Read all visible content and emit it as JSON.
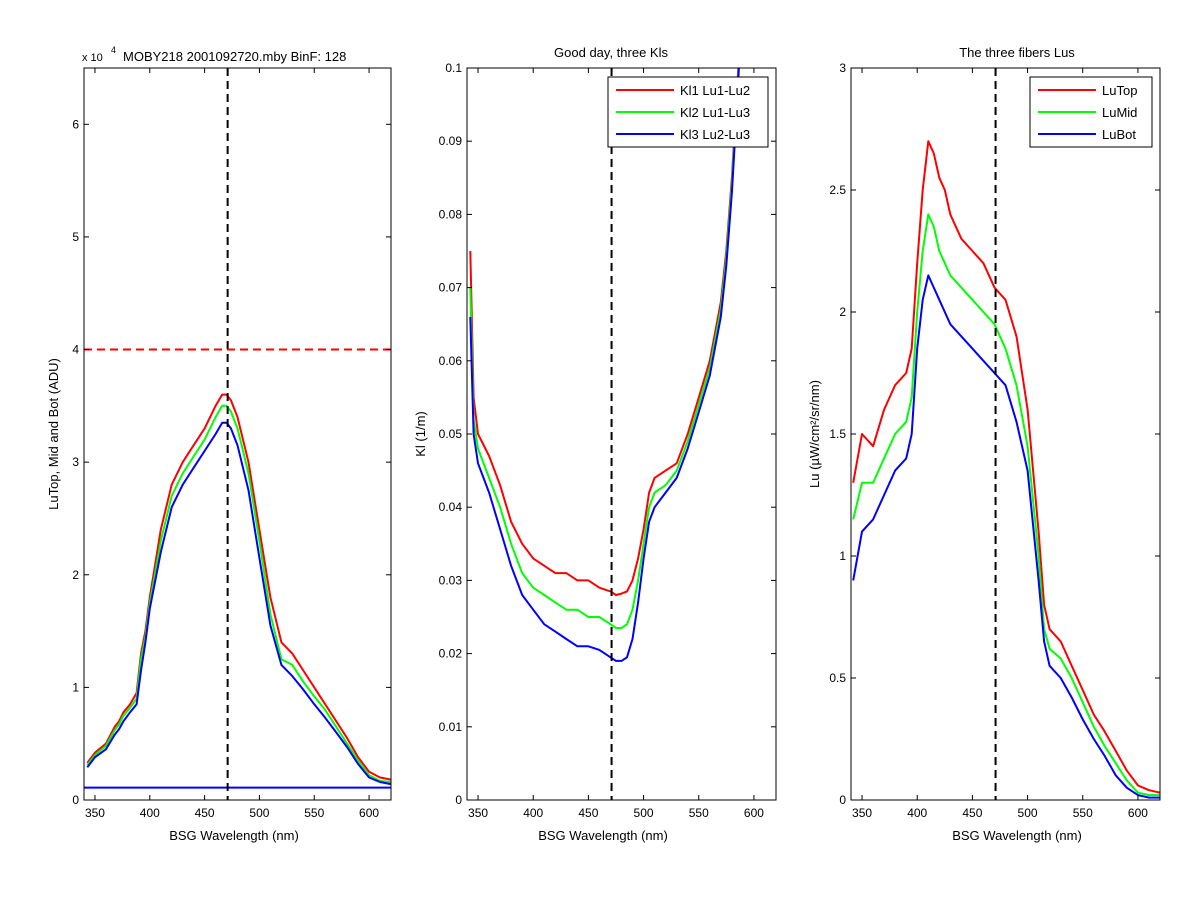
{
  "figure": {
    "background": "#ffffff"
  },
  "chart_data": [
    {
      "type": "line",
      "title": "MOBY218  2001092720.mby BinF: 128",
      "scale_note": "x 10",
      "scale_exp": "4",
      "xlabel": "BSG Wavelength (nm)",
      "ylabel": "LuTop, Mid and Bot (ADU)",
      "xlim": [
        340,
        620
      ],
      "ylim": [
        0,
        65000
      ],
      "xticks": [
        350,
        400,
        450,
        500,
        550,
        600
      ],
      "xtick_labels": [
        "350",
        "400",
        "450",
        "500",
        "550",
        "600"
      ],
      "yticks": [
        0,
        10000,
        20000,
        30000,
        40000,
        50000,
        60000
      ],
      "ytick_labels": [
        "0",
        "1",
        "2",
        "3",
        "4",
        "5",
        "6"
      ],
      "grid": false,
      "legend": null,
      "reference_lines": [
        {
          "orientation": "vertical",
          "value": 471,
          "color": "#000000",
          "style": "dashed"
        },
        {
          "orientation": "horizontal",
          "value": 40000,
          "color": "#ff0000",
          "style": "dashed"
        }
      ],
      "series": [
        {
          "color": "#ff0000",
          "x": [
            343,
            350,
            360,
            368,
            372,
            376,
            382,
            388,
            392,
            396,
            400,
            410,
            420,
            430,
            440,
            450,
            460,
            466,
            470,
            474,
            480,
            490,
            500,
            510,
            520,
            530,
            540,
            550,
            560,
            570,
            580,
            590,
            600,
            610,
            620
          ],
          "values": [
            3300,
            4200,
            5000,
            6500,
            7000,
            7800,
            8500,
            9500,
            13000,
            15000,
            18000,
            24000,
            28000,
            30000,
            31500,
            33000,
            35000,
            36000,
            36000,
            35500,
            34000,
            30000,
            24000,
            18000,
            14000,
            13000,
            11500,
            10000,
            8500,
            7000,
            5500,
            3800,
            2500,
            2000,
            1800
          ]
        },
        {
          "color": "#00ff00",
          "x": [
            343,
            350,
            360,
            368,
            372,
            376,
            382,
            388,
            392,
            396,
            400,
            410,
            420,
            430,
            440,
            450,
            460,
            466,
            470,
            474,
            480,
            490,
            500,
            510,
            520,
            530,
            540,
            550,
            560,
            570,
            580,
            590,
            600,
            610,
            620
          ],
          "values": [
            3100,
            4000,
            4800,
            6200,
            6700,
            7500,
            8200,
            9000,
            12500,
            14500,
            17500,
            23000,
            27000,
            29000,
            30500,
            32000,
            34000,
            35000,
            35000,
            34500,
            33000,
            29000,
            23000,
            16500,
            12500,
            12000,
            10500,
            9200,
            8000,
            6500,
            5000,
            3500,
            2200,
            1700,
            1600
          ]
        },
        {
          "color": "#0000ff",
          "x": [
            343,
            350,
            360,
            368,
            372,
            376,
            382,
            388,
            392,
            396,
            400,
            410,
            420,
            430,
            440,
            450,
            460,
            466,
            470,
            474,
            480,
            490,
            500,
            510,
            520,
            530,
            540,
            550,
            560,
            570,
            580,
            590,
            600,
            610,
            620
          ],
          "values": [
            2900,
            3800,
            4500,
            5800,
            6300,
            7000,
            7800,
            8500,
            11500,
            14000,
            17000,
            22000,
            26000,
            28000,
            29500,
            31000,
            32500,
            33500,
            33500,
            33000,
            31500,
            27500,
            21500,
            15500,
            12000,
            11000,
            9800,
            8500,
            7300,
            6000,
            4700,
            3200,
            2000,
            1600,
            1400
          ]
        },
        {
          "color": "#0000ff",
          "x": [
            340,
            620
          ],
          "values": [
            1100,
            1100
          ]
        }
      ]
    },
    {
      "type": "line",
      "title": "Good day, three Kls",
      "xlabel": "BSG Wavelength (nm)",
      "ylabel": "Kl (1/m)",
      "xlim": [
        340,
        620
      ],
      "ylim": [
        0,
        0.1
      ],
      "xticks": [
        350,
        400,
        450,
        500,
        550,
        600
      ],
      "xtick_labels": [
        "350",
        "400",
        "450",
        "500",
        "550",
        "600"
      ],
      "yticks": [
        0,
        0.01,
        0.02,
        0.03,
        0.04,
        0.05,
        0.06,
        0.07,
        0.08,
        0.09,
        0.1
      ],
      "ytick_labels": [
        "0",
        "0.01",
        "0.02",
        "0.03",
        "0.04",
        "0.05",
        "0.06",
        "0.07",
        "0.08",
        "0.09",
        "0.1"
      ],
      "grid": false,
      "legend": "top-right",
      "reference_lines": [
        {
          "orientation": "vertical",
          "value": 471,
          "color": "#000000",
          "style": "dashed"
        }
      ],
      "series": [
        {
          "name": "Kl1 Lu1-Lu2",
          "color": "#ff0000",
          "x": [
            343,
            346,
            350,
            360,
            370,
            380,
            390,
            400,
            410,
            420,
            430,
            440,
            450,
            460,
            470,
            475,
            480,
            485,
            490,
            495,
            500,
            505,
            510,
            520,
            530,
            540,
            550,
            560,
            570,
            575,
            580,
            585,
            588
          ],
          "values": [
            0.075,
            0.055,
            0.05,
            0.047,
            0.043,
            0.038,
            0.035,
            0.033,
            0.032,
            0.031,
            0.031,
            0.03,
            0.03,
            0.029,
            0.0285,
            0.028,
            0.0282,
            0.0285,
            0.03,
            0.033,
            0.037,
            0.042,
            0.044,
            0.045,
            0.046,
            0.05,
            0.055,
            0.06,
            0.068,
            0.075,
            0.085,
            0.098,
            0.105
          ]
        },
        {
          "name": "Kl2 Lu1-Lu3",
          "color": "#00ff00",
          "x": [
            343,
            346,
            350,
            360,
            370,
            380,
            390,
            400,
            410,
            420,
            430,
            440,
            450,
            460,
            470,
            475,
            480,
            485,
            490,
            495,
            500,
            505,
            510,
            520,
            530,
            540,
            550,
            560,
            570,
            575,
            580,
            585,
            588
          ],
          "values": [
            0.07,
            0.052,
            0.048,
            0.044,
            0.04,
            0.035,
            0.031,
            0.029,
            0.028,
            0.027,
            0.026,
            0.026,
            0.025,
            0.025,
            0.024,
            0.0235,
            0.0235,
            0.024,
            0.026,
            0.03,
            0.035,
            0.04,
            0.042,
            0.043,
            0.045,
            0.049,
            0.054,
            0.059,
            0.067,
            0.074,
            0.084,
            0.097,
            0.105
          ]
        },
        {
          "name": "Kl3 Lu2-Lu3",
          "color": "#0000ff",
          "x": [
            343,
            346,
            350,
            360,
            370,
            380,
            390,
            400,
            410,
            420,
            430,
            440,
            450,
            460,
            470,
            475,
            480,
            485,
            490,
            495,
            500,
            505,
            510,
            520,
            530,
            540,
            550,
            560,
            570,
            575,
            580,
            585,
            588
          ],
          "values": [
            0.066,
            0.05,
            0.046,
            0.042,
            0.037,
            0.032,
            0.028,
            0.026,
            0.024,
            0.023,
            0.022,
            0.021,
            0.021,
            0.0205,
            0.0195,
            0.019,
            0.019,
            0.0195,
            0.022,
            0.027,
            0.033,
            0.038,
            0.04,
            0.042,
            0.044,
            0.048,
            0.053,
            0.058,
            0.066,
            0.073,
            0.083,
            0.096,
            0.105
          ]
        }
      ]
    },
    {
      "type": "line",
      "title": "The three fibers Lus",
      "xlabel": "BSG Wavelength (nm)",
      "ylabel": "Lu (µW/cm²/sr/nm)",
      "xlim": [
        340,
        620
      ],
      "ylim": [
        0,
        3
      ],
      "xticks": [
        350,
        400,
        450,
        500,
        550,
        600
      ],
      "xtick_labels": [
        "350",
        "400",
        "450",
        "500",
        "550",
        "600"
      ],
      "yticks": [
        0,
        0.5,
        1,
        1.5,
        2,
        2.5,
        3
      ],
      "ytick_labels": [
        "0",
        "0.5",
        "1",
        "1.5",
        "2",
        "2.5",
        "3"
      ],
      "grid": false,
      "legend": "top-right",
      "reference_lines": [
        {
          "orientation": "vertical",
          "value": 471,
          "color": "#000000",
          "style": "dashed"
        }
      ],
      "series": [
        {
          "name": "LuTop",
          "color": "#ff0000",
          "x": [
            342,
            350,
            360,
            370,
            380,
            390,
            395,
            400,
            405,
            410,
            415,
            420,
            425,
            430,
            440,
            450,
            460,
            470,
            480,
            490,
            500,
            510,
            515,
            520,
            530,
            540,
            550,
            560,
            570,
            580,
            590,
            600,
            610,
            620
          ],
          "values": [
            1.3,
            1.5,
            1.45,
            1.6,
            1.7,
            1.75,
            1.85,
            2.2,
            2.5,
            2.7,
            2.65,
            2.55,
            2.5,
            2.4,
            2.3,
            2.25,
            2.2,
            2.1,
            2.05,
            1.9,
            1.6,
            1.1,
            0.8,
            0.7,
            0.65,
            0.55,
            0.45,
            0.35,
            0.28,
            0.2,
            0.12,
            0.06,
            0.04,
            0.03
          ]
        },
        {
          "name": "LuMid",
          "color": "#00ff00",
          "x": [
            342,
            350,
            360,
            370,
            380,
            390,
            395,
            400,
            405,
            410,
            415,
            420,
            425,
            430,
            440,
            450,
            460,
            470,
            480,
            490,
            500,
            510,
            515,
            520,
            530,
            540,
            550,
            560,
            570,
            580,
            590,
            600,
            610,
            620
          ],
          "values": [
            1.15,
            1.3,
            1.3,
            1.4,
            1.5,
            1.55,
            1.65,
            2.0,
            2.25,
            2.4,
            2.35,
            2.25,
            2.2,
            2.15,
            2.1,
            2.05,
            2.0,
            1.95,
            1.85,
            1.7,
            1.45,
            1.0,
            0.7,
            0.62,
            0.58,
            0.5,
            0.4,
            0.3,
            0.22,
            0.15,
            0.08,
            0.03,
            0.02,
            0.02
          ]
        },
        {
          "name": "LuBot",
          "color": "#0000ff",
          "x": [
            342,
            350,
            360,
            370,
            380,
            390,
            395,
            400,
            405,
            410,
            415,
            420,
            425,
            430,
            440,
            450,
            460,
            470,
            480,
            490,
            500,
            510,
            515,
            520,
            530,
            540,
            550,
            560,
            570,
            580,
            590,
            600,
            610,
            620
          ],
          "values": [
            0.9,
            1.1,
            1.15,
            1.25,
            1.35,
            1.4,
            1.5,
            1.85,
            2.05,
            2.15,
            2.1,
            2.05,
            2.0,
            1.95,
            1.9,
            1.85,
            1.8,
            1.75,
            1.7,
            1.55,
            1.35,
            0.9,
            0.65,
            0.55,
            0.5,
            0.42,
            0.33,
            0.25,
            0.18,
            0.1,
            0.05,
            0.02,
            0.01,
            0.01
          ]
        }
      ]
    }
  ]
}
